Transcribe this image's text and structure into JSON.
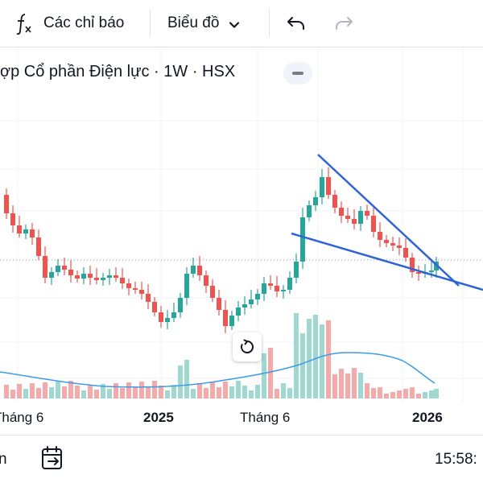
{
  "toolbar": {
    "indicators_label": "Các chỉ báo",
    "chart_type_label": "Biểu đồ"
  },
  "chart": {
    "symbol_title": "ợp Cổ phần Điện lực · 1W · HSX",
    "time_axis_labels": [
      {
        "text": "Tháng 6",
        "bold": false
      },
      {
        "text": "2025",
        "bold": true
      },
      {
        "text": "Tháng 6",
        "bold": false
      },
      {
        "text": "2026",
        "bold": true
      }
    ],
    "colors": {
      "up": "#26a69a",
      "down": "#ef5350",
      "volume_up": "#9fd8d1",
      "volume_down": "#f5a9a8",
      "volume_ma": "#3d9be9",
      "trendline": "#2f63d8",
      "price_line": "#9aa2ae"
    }
  },
  "chart_data": {
    "type": "candlestick",
    "interval": "1W",
    "exchange": "HSX",
    "x_range": [
      "2024-05",
      "2026-01"
    ],
    "volume_panel": true,
    "drawings": [
      "descending-trendline-upper",
      "descending-trendline-lower"
    ]
  },
  "status_bar": {
    "left_text": "n",
    "time_text": "15:58:"
  }
}
